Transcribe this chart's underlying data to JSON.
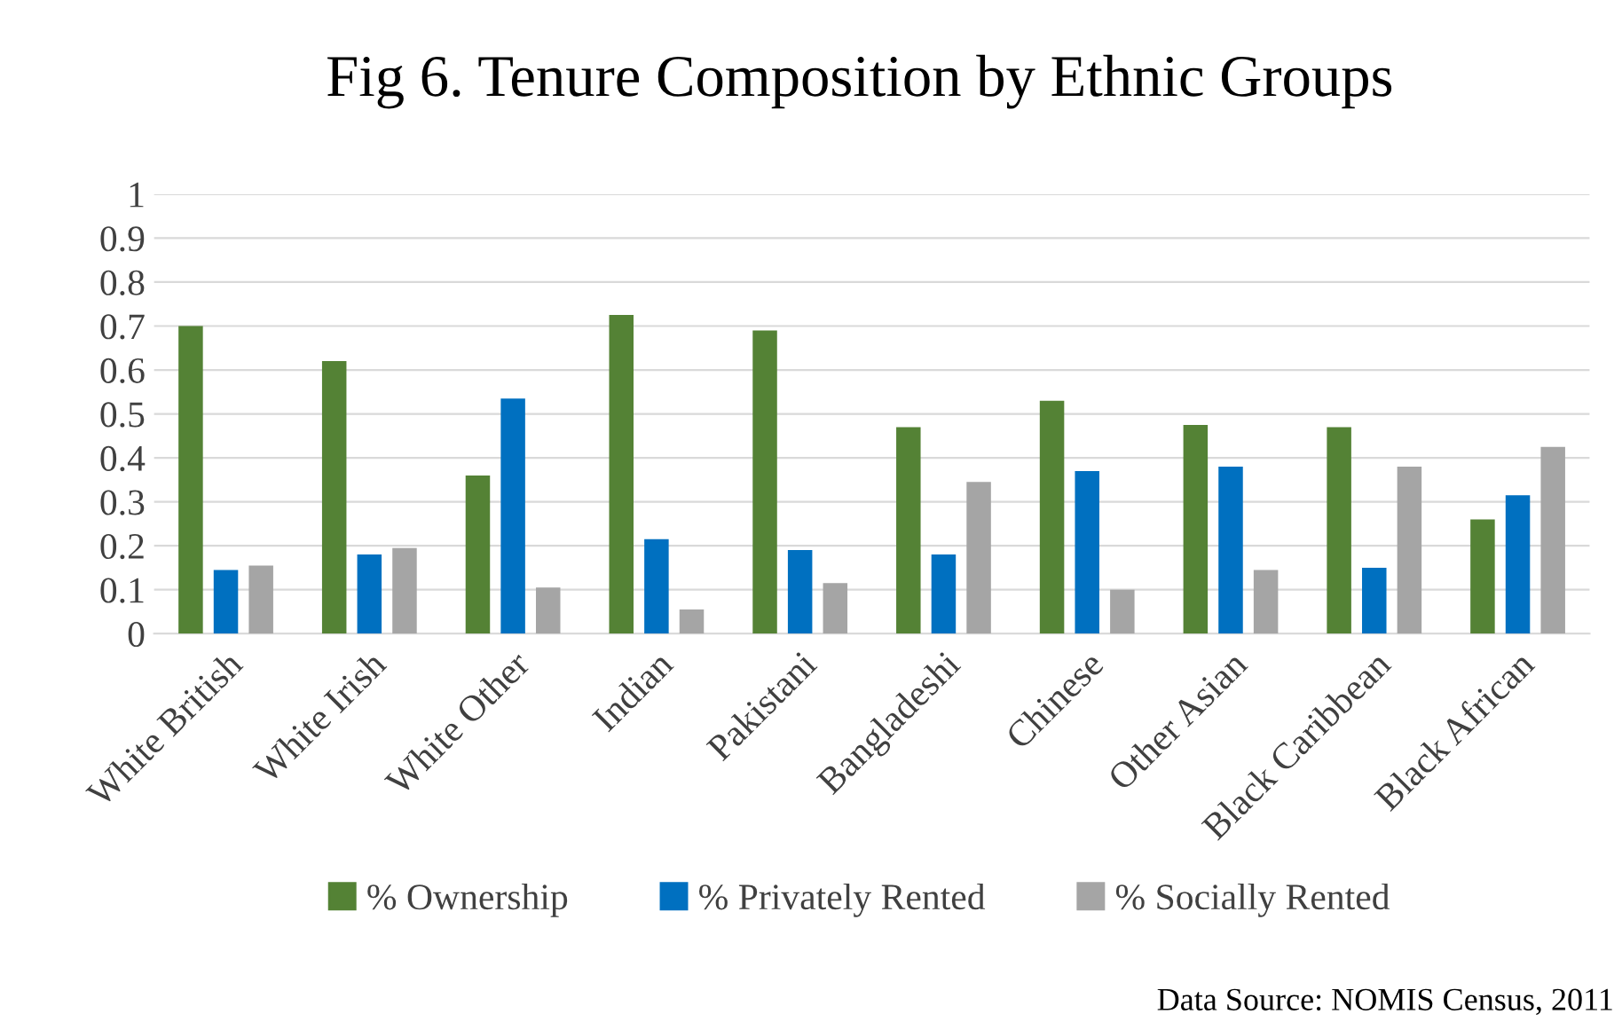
{
  "chart_data": {
    "type": "bar",
    "title": "Fig 6. Tenure Composition by Ethnic Groups",
    "categories": [
      "White British",
      "White Irish",
      "White Other",
      "Indian",
      "Pakistani",
      "Bangladeshi",
      "Chinese",
      "Other Asian",
      "Black Caribbean",
      "Black African"
    ],
    "series": [
      {
        "name": "% Ownership",
        "color": "#548235",
        "values": [
          0.7,
          0.62,
          0.36,
          0.725,
          0.69,
          0.47,
          0.53,
          0.475,
          0.47,
          0.26
        ]
      },
      {
        "name": "% Privately Rented",
        "color": "#0070c0",
        "values": [
          0.145,
          0.18,
          0.535,
          0.215,
          0.19,
          0.18,
          0.37,
          0.38,
          0.15,
          0.315
        ]
      },
      {
        "name": "% Socially Rented",
        "color": "#a5a5a5",
        "values": [
          0.155,
          0.195,
          0.105,
          0.055,
          0.115,
          0.345,
          0.1,
          0.145,
          0.38,
          0.425
        ]
      }
    ],
    "ylim": [
      0,
      1
    ],
    "yticks": [
      0,
      0.1,
      0.2,
      0.3,
      0.4,
      0.5,
      0.6,
      0.7,
      0.8,
      0.9,
      1
    ],
    "grid": "y",
    "legend": "bottom",
    "annotations": [
      "Data Source: NOMIS Census, 2011"
    ]
  }
}
